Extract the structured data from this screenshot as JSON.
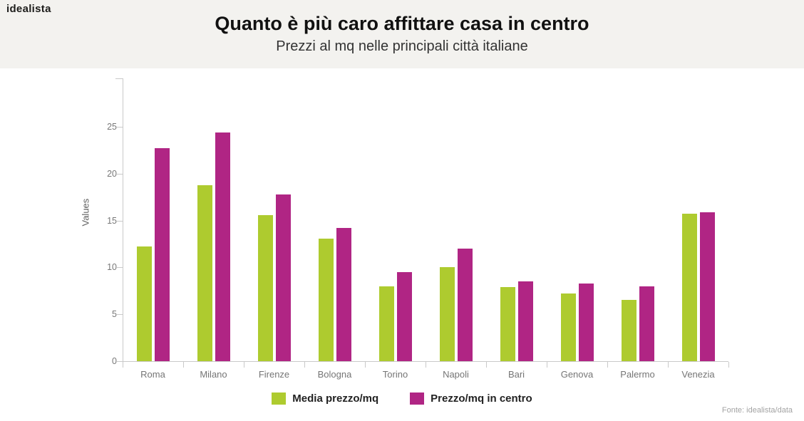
{
  "logo": "idealista",
  "header": {
    "title": "Quanto è più caro affittare casa in centro",
    "subtitle": "Prezzi al mq nelle principali città italiane"
  },
  "chart_data": {
    "type": "bar",
    "categories": [
      "Roma",
      "Milano",
      "Firenze",
      "Bologna",
      "Torino",
      "Napoli",
      "Bari",
      "Genova",
      "Palermo",
      "Venezia"
    ],
    "series": [
      {
        "name": "Media prezzo/mq",
        "color": "#aecb2f",
        "values": [
          12.2,
          18.8,
          15.6,
          13.1,
          8.0,
          10.0,
          7.9,
          7.2,
          6.5,
          15.7
        ]
      },
      {
        "name": "Prezzo/mq in centro",
        "color": "#b02584",
        "values": [
          22.7,
          24.4,
          17.8,
          14.2,
          9.5,
          12.0,
          8.5,
          8.3,
          8.0,
          15.9
        ]
      }
    ],
    "title": "Quanto è più caro affittare casa in centro",
    "subtitle": "Prezzi al mq nelle principali città italiane",
    "xlabel": "",
    "ylabel": "Values",
    "yticks": [
      0,
      5,
      10,
      15,
      20,
      25
    ],
    "ylim": [
      0,
      30.2
    ],
    "grid": false,
    "legend_position": "bottom"
  },
  "footer": {
    "source": "Fonte: idealista/data"
  },
  "colors": {
    "header_background": "#f3f2ef",
    "axis": "#c9c9c9",
    "tick_text": "#787878",
    "series_media": "#aecb2f",
    "series_centro": "#b02584"
  }
}
